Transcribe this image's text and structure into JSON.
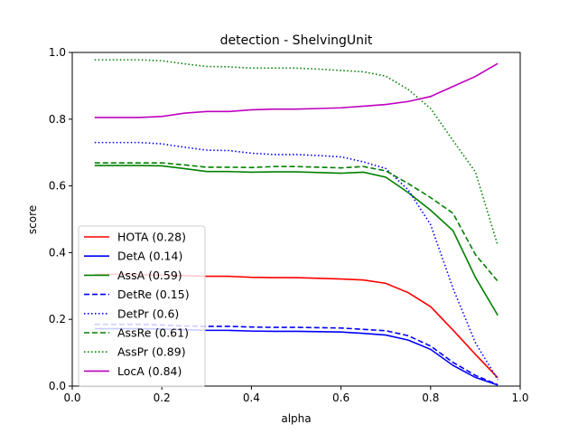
{
  "chart_data": {
    "type": "line",
    "title": "detection - ShelvingUnit",
    "xlabel": "alpha",
    "ylabel": "score",
    "xlim": [
      0.0,
      1.0
    ],
    "ylim": [
      0.0,
      1.0
    ],
    "xticks": [
      "0.0",
      "0.2",
      "0.4",
      "0.6",
      "0.8",
      "1.0"
    ],
    "yticks": [
      "0.0",
      "0.2",
      "0.4",
      "0.6",
      "0.8",
      "1.0"
    ],
    "grid": false,
    "legend_position": "lower-left",
    "x": [
      0.05,
      0.1,
      0.15,
      0.2,
      0.25,
      0.3,
      0.35,
      0.4,
      0.45,
      0.5,
      0.55,
      0.6,
      0.65,
      0.7,
      0.75,
      0.8,
      0.85,
      0.9,
      0.95
    ],
    "series": [
      {
        "name": "HOTA (0.28)",
        "color": "#ff0000",
        "dash": "solid",
        "values": [
          0.335,
          0.335,
          0.334,
          0.332,
          0.331,
          0.329,
          0.329,
          0.326,
          0.325,
          0.325,
          0.323,
          0.321,
          0.318,
          0.308,
          0.28,
          0.238,
          0.168,
          0.095,
          0.025
        ]
      },
      {
        "name": "DetA (0.14)",
        "color": "#0000ff",
        "dash": "solid",
        "values": [
          0.172,
          0.172,
          0.172,
          0.171,
          0.169,
          0.167,
          0.167,
          0.165,
          0.164,
          0.164,
          0.163,
          0.162,
          0.158,
          0.153,
          0.138,
          0.11,
          0.062,
          0.026,
          0.003
        ]
      },
      {
        "name": "AssA (0.59)",
        "color": "#008000",
        "dash": "solid",
        "values": [
          0.661,
          0.661,
          0.661,
          0.66,
          0.652,
          0.643,
          0.643,
          0.641,
          0.642,
          0.642,
          0.64,
          0.638,
          0.641,
          0.626,
          0.58,
          0.527,
          0.466,
          0.326,
          0.212
        ]
      },
      {
        "name": "DetRe (0.15)",
        "color": "#0000ff",
        "dash": "dashed",
        "values": [
          0.185,
          0.185,
          0.185,
          0.183,
          0.18,
          0.179,
          0.179,
          0.177,
          0.176,
          0.176,
          0.175,
          0.174,
          0.17,
          0.166,
          0.151,
          0.12,
          0.071,
          0.032,
          0.004
        ]
      },
      {
        "name": "DetPr (0.6)",
        "color": "#0000ff",
        "dash": "dotted",
        "values": [
          0.73,
          0.73,
          0.73,
          0.726,
          0.716,
          0.707,
          0.706,
          0.698,
          0.694,
          0.694,
          0.691,
          0.687,
          0.672,
          0.652,
          0.588,
          0.484,
          0.293,
          0.13,
          0.019
        ]
      },
      {
        "name": "AssRe (0.61)",
        "color": "#008000",
        "dash": "dashed",
        "values": [
          0.669,
          0.669,
          0.669,
          0.669,
          0.663,
          0.656,
          0.656,
          0.655,
          0.658,
          0.658,
          0.656,
          0.654,
          0.658,
          0.645,
          0.607,
          0.565,
          0.518,
          0.394,
          0.314
        ]
      },
      {
        "name": "AssPr (0.89)",
        "color": "#008000",
        "dash": "dotted",
        "values": [
          0.978,
          0.978,
          0.978,
          0.975,
          0.966,
          0.958,
          0.957,
          0.953,
          0.953,
          0.953,
          0.95,
          0.946,
          0.942,
          0.929,
          0.889,
          0.832,
          0.736,
          0.642,
          0.421
        ]
      },
      {
        "name": "LocA (0.84)",
        "color": "#bf00bf",
        "dash": "solid",
        "values": [
          0.805,
          0.805,
          0.805,
          0.808,
          0.818,
          0.823,
          0.823,
          0.828,
          0.83,
          0.83,
          0.832,
          0.834,
          0.839,
          0.844,
          0.853,
          0.868,
          0.898,
          0.928,
          0.967
        ]
      }
    ]
  }
}
